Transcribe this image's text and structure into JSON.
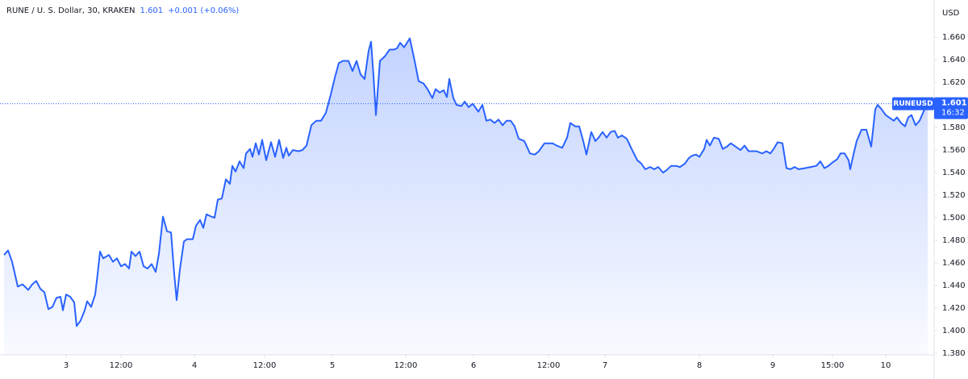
{
  "chart_data": {
    "type": "area",
    "title": "RUNE / U. S. Dollar, 30, KRAKEN",
    "last_price": 1.601,
    "change": "+0.001 (+0.06%)",
    "y_axis_label": "USD",
    "countdown": "16:32",
    "x": [
      0,
      5,
      10,
      17,
      23,
      30,
      35,
      40,
      45,
      50,
      55,
      60,
      65,
      70,
      73,
      77,
      82,
      87,
      90,
      95,
      100,
      103,
      108,
      113,
      116,
      119,
      123,
      130,
      135,
      140,
      145,
      150,
      155,
      158,
      163,
      168,
      173,
      178,
      183,
      188,
      192,
      197,
      202,
      207,
      211,
      214,
      218,
      223,
      227,
      234,
      238,
      243,
      247,
      251,
      257,
      261,
      265,
      270,
      275,
      280,
      283,
      287,
      292,
      297,
      300,
      305,
      308,
      312,
      316,
      320,
      325,
      331,
      336,
      341,
      346,
      350,
      353,
      358,
      365,
      370,
      375,
      381,
      387,
      393,
      399,
      405,
      410,
      415,
      420,
      427,
      432,
      437,
      442,
      447,
      452,
      455,
      458,
      461,
      466,
      472,
      478,
      483,
      487,
      491,
      496,
      503,
      509,
      514,
      520,
      525,
      531,
      535,
      540,
      545,
      549,
      552,
      557,
      561,
      567,
      571,
      576,
      581,
      588,
      593,
      598,
      603,
      608,
      613,
      618,
      623,
      628,
      633,
      638,
      645,
      652,
      658,
      663,
      670,
      680,
      685,
      692,
      698,
      702,
      708,
      713,
      718,
      722,
      728,
      733,
      737,
      742,
      747,
      752,
      757,
      761,
      766,
      772,
      778,
      785,
      790,
      795,
      801,
      806,
      811,
      817,
      821,
      827,
      833,
      838,
      844,
      849,
      853,
      858,
      862,
      868,
      871,
      875,
      880,
      886,
      891,
      896,
      901,
      907,
      913,
      918,
      923,
      928,
      933,
      940,
      945,
      950,
      955,
      959,
      965,
      970,
      975,
      980,
      985,
      993,
      1000,
      1007,
      1012,
      1017,
      1022,
      1027,
      1033,
      1037,
      1042,
      1047,
      1049,
      1053,
      1057,
      1063,
      1069,
      1075,
      1080,
      1083,
      1088,
      1093,
      1099,
      1103,
      1107,
      1112,
      1117,
      1121,
      1125,
      1130,
      1135,
      1141,
      1145
    ],
    "series": [
      {
        "name": "RUNEUSD",
        "color": "#2962ff",
        "values": [
          1.467,
          1.471,
          1.461,
          1.439,
          1.441,
          1.436,
          1.441,
          1.444,
          1.437,
          1.434,
          1.419,
          1.421,
          1.429,
          1.43,
          1.418,
          1.432,
          1.43,
          1.425,
          1.404,
          1.409,
          1.418,
          1.426,
          1.421,
          1.432,
          1.45,
          1.47,
          1.464,
          1.467,
          1.461,
          1.464,
          1.457,
          1.459,
          1.455,
          1.47,
          1.466,
          1.47,
          1.457,
          1.455,
          1.459,
          1.452,
          1.468,
          1.501,
          1.488,
          1.487,
          1.45,
          1.427,
          1.454,
          1.479,
          1.481,
          1.481,
          1.493,
          1.498,
          1.491,
          1.503,
          1.501,
          1.5,
          1.516,
          1.517,
          1.534,
          1.53,
          1.546,
          1.541,
          1.55,
          1.544,
          1.557,
          1.561,
          1.554,
          1.566,
          1.556,
          1.569,
          1.551,
          1.567,
          1.554,
          1.569,
          1.553,
          1.562,
          1.555,
          1.56,
          1.559,
          1.56,
          1.564,
          1.582,
          1.586,
          1.586,
          1.593,
          1.609,
          1.624,
          1.637,
          1.639,
          1.639,
          1.63,
          1.639,
          1.627,
          1.623,
          1.648,
          1.656,
          1.626,
          1.591,
          1.639,
          1.643,
          1.649,
          1.649,
          1.65,
          1.655,
          1.651,
          1.659,
          1.639,
          1.621,
          1.619,
          1.614,
          1.606,
          1.614,
          1.611,
          1.613,
          1.607,
          1.623,
          1.606,
          1.6,
          1.599,
          1.603,
          1.598,
          1.601,
          1.594,
          1.6,
          1.586,
          1.587,
          1.584,
          1.587,
          1.582,
          1.586,
          1.586,
          1.581,
          1.57,
          1.568,
          1.557,
          1.556,
          1.559,
          1.566,
          1.566,
          1.564,
          1.562,
          1.571,
          1.584,
          1.581,
          1.581,
          1.568,
          1.556,
          1.576,
          1.568,
          1.571,
          1.576,
          1.571,
          1.576,
          1.577,
          1.571,
          1.573,
          1.57,
          1.561,
          1.551,
          1.548,
          1.543,
          1.545,
          1.543,
          1.545,
          1.54,
          1.542,
          1.546,
          1.546,
          1.545,
          1.548,
          1.553,
          1.555,
          1.556,
          1.554,
          1.561,
          1.569,
          1.564,
          1.571,
          1.57,
          1.561,
          1.563,
          1.566,
          1.563,
          1.56,
          1.564,
          1.559,
          1.559,
          1.559,
          1.557,
          1.559,
          1.557,
          1.562,
          1.567,
          1.566,
          1.544,
          1.543,
          1.545,
          1.543,
          1.544,
          1.545,
          1.546,
          1.55,
          1.544,
          1.546,
          1.549,
          1.552,
          1.557,
          1.557,
          1.551,
          1.543,
          1.556,
          1.568,
          1.578,
          1.578,
          1.563,
          1.596,
          1.6,
          1.596,
          1.591,
          1.588,
          1.586,
          1.589,
          1.584,
          1.581,
          1.589,
          1.591,
          1.582,
          1.586,
          1.596,
          1.601
        ]
      }
    ],
    "xlim": [
      -5,
      1153
    ],
    "xticks": [
      {
        "value": 77,
        "label": "3"
      },
      {
        "value": 145,
        "label": "12:00"
      },
      {
        "value": 236,
        "label": "4"
      },
      {
        "value": 323,
        "label": "12:00"
      },
      {
        "value": 407,
        "label": "5"
      },
      {
        "value": 498,
        "label": "12:00"
      },
      {
        "value": 582,
        "label": "6"
      },
      {
        "value": 675,
        "label": "12:00"
      },
      {
        "value": 745,
        "label": "7"
      },
      {
        "value": 862,
        "label": "8"
      },
      {
        "value": 953,
        "label": "9"
      },
      {
        "value": 1027,
        "label": "15:00"
      },
      {
        "value": 1093,
        "label": "10"
      }
    ],
    "ylim": [
      1.3786,
      1.6929
    ],
    "yticks": [
      {
        "value": 1.38,
        "label": "1.380"
      },
      {
        "value": 1.4,
        "label": "1.400"
      },
      {
        "value": 1.42,
        "label": "1.420"
      },
      {
        "value": 1.44,
        "label": "1.440"
      },
      {
        "value": 1.46,
        "label": "1.460"
      },
      {
        "value": 1.48,
        "label": "1.480"
      },
      {
        "value": 1.5,
        "label": "1.500"
      },
      {
        "value": 1.52,
        "label": "1.520"
      },
      {
        "value": 1.54,
        "label": "1.540"
      },
      {
        "value": 1.56,
        "label": "1.560"
      },
      {
        "value": 1.58,
        "label": "1.580"
      },
      {
        "value": 1.6,
        "label": "1.600"
      },
      {
        "value": 1.62,
        "label": "1.620"
      },
      {
        "value": 1.64,
        "label": "1.640"
      },
      {
        "value": 1.66,
        "label": "1.660"
      }
    ],
    "grid": false
  }
}
